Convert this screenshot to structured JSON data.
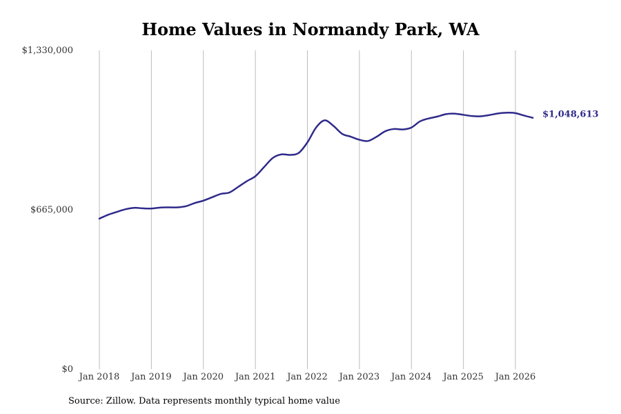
{
  "chart_data": {
    "type": "line",
    "title": "Home Values in Normandy Park, WA",
    "xlabel": "",
    "ylabel": "",
    "ylim": [
      0,
      1330000
    ],
    "y_ticks": [
      {
        "value": 0,
        "label": "$0"
      },
      {
        "value": 665000,
        "label": "$665,000"
      },
      {
        "value": 1330000,
        "label": "$1,330,000"
      }
    ],
    "x_ticks": [
      {
        "value": "2018-01",
        "label": "Jan 2018"
      },
      {
        "value": "2019-01",
        "label": "Jan 2019"
      },
      {
        "value": "2020-01",
        "label": "Jan 2020"
      },
      {
        "value": "2021-01",
        "label": "Jan 2021"
      },
      {
        "value": "2022-01",
        "label": "Jan 2022"
      },
      {
        "value": "2023-01",
        "label": "Jan 2023"
      },
      {
        "value": "2024-01",
        "label": "Jan 2024"
      },
      {
        "value": "2025-01",
        "label": "Jan 2025"
      },
      {
        "value": "2026-01",
        "label": "Jan 2026"
      }
    ],
    "grid": {
      "vertical": true,
      "horizontal": false
    },
    "series": [
      {
        "color": "#2e2a8a",
        "x": [
          "2018-01",
          "2018-03",
          "2018-05",
          "2018-07",
          "2018-09",
          "2018-11",
          "2019-01",
          "2019-03",
          "2019-05",
          "2019-07",
          "2019-09",
          "2019-11",
          "2020-01",
          "2020-03",
          "2020-05",
          "2020-07",
          "2020-09",
          "2020-11",
          "2021-01",
          "2021-03",
          "2021-05",
          "2021-07",
          "2021-09",
          "2021-11",
          "2022-01",
          "2022-03",
          "2022-05",
          "2022-07",
          "2022-09",
          "2022-11",
          "2023-01",
          "2023-03",
          "2023-05",
          "2023-07",
          "2023-09",
          "2023-11",
          "2024-01",
          "2024-03",
          "2024-05",
          "2024-07",
          "2024-09",
          "2024-11",
          "2025-01",
          "2025-03",
          "2025-05",
          "2025-07",
          "2025-09",
          "2025-11",
          "2026-01",
          "2026-03",
          "2026-05"
        ],
        "values": [
          628000,
          644000,
          656000,
          667000,
          673000,
          671000,
          670000,
          674000,
          675000,
          675000,
          680000,
          693000,
          703000,
          717000,
          731000,
          737000,
          760000,
          784000,
          805000,
          843000,
          881000,
          896000,
          894000,
          902000,
          946000,
          1008000,
          1038000,
          1015000,
          982000,
          970000,
          957000,
          952000,
          970000,
          993000,
          1002000,
          1000000,
          1008000,
          1034000,
          1046000,
          1054000,
          1064000,
          1066000,
          1061000,
          1056000,
          1055000,
          1060000,
          1067000,
          1070000,
          1068000,
          1058000,
          1048613
        ]
      }
    ],
    "annotations": [
      {
        "text": "$1,048,613",
        "color": "#2e2a8a"
      }
    ]
  },
  "footer": {
    "source": "Source: Zillow. Data represents monthly typical home value"
  }
}
